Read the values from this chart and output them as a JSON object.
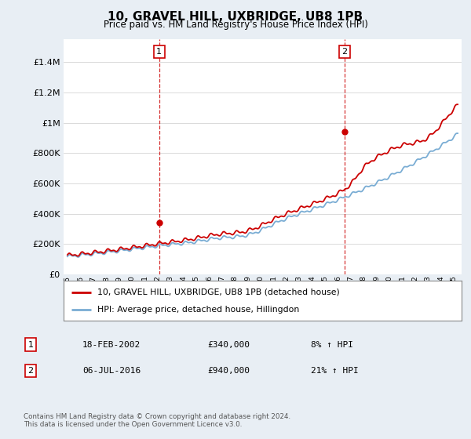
{
  "title": "10, GRAVEL HILL, UXBRIDGE, UB8 1PB",
  "subtitle": "Price paid vs. HM Land Registry's House Price Index (HPI)",
  "yticks": [
    0,
    200000,
    400000,
    600000,
    800000,
    1000000,
    1200000,
    1400000
  ],
  "ytick_labels": [
    "£0",
    "£200K",
    "£400K",
    "£600K",
    "£800K",
    "£1M",
    "£1.2M",
    "£1.4M"
  ],
  "ylim": [
    0,
    1550000
  ],
  "hpi_color": "#7aadd4",
  "price_color": "#cc0000",
  "marker1_year": 2002.12,
  "marker1_price": 340000,
  "marker2_year": 2016.51,
  "marker2_price": 940000,
  "legend_label_red": "10, GRAVEL HILL, UXBRIDGE, UB8 1PB (detached house)",
  "legend_label_blue": "HPI: Average price, detached house, Hillingdon",
  "annotation1_date": "18-FEB-2002",
  "annotation1_price": "£340,000",
  "annotation1_hpi": "8% ↑ HPI",
  "annotation2_date": "06-JUL-2016",
  "annotation2_price": "£940,000",
  "annotation2_hpi": "21% ↑ HPI",
  "footer": "Contains HM Land Registry data © Crown copyright and database right 2024.\nThis data is licensed under the Open Government Licence v3.0.",
  "background_color": "#e8eef4",
  "plot_bg_color": "#ffffff",
  "grid_color": "#cccccc"
}
